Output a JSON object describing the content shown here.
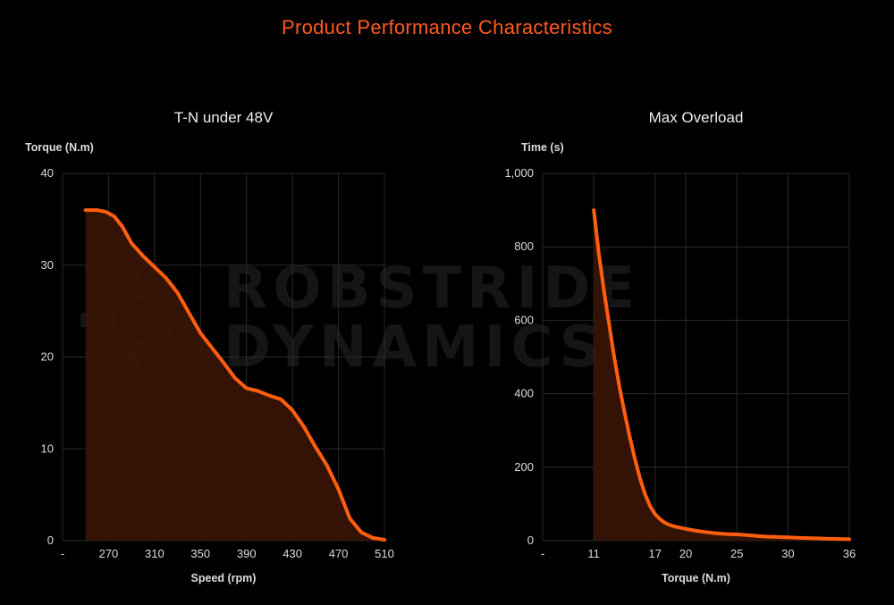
{
  "page": {
    "title": "Product Performance Characteristics",
    "title_color": "#ff5a1f",
    "watermark": {
      "line1": "ROBSTRIDE",
      "line2": "DYNAMICS"
    }
  },
  "colors": {
    "series": "#ff5e0e",
    "area_fill": "#3a1405",
    "grid": "#2a2a2a",
    "axis_text": "#dddddd"
  },
  "chart_data": [
    {
      "type": "area",
      "title": "T-N under 48V",
      "xlabel": "Speed (rpm)",
      "ylabel": "Torque (N.m)",
      "x_ticks": [
        "-",
        "270",
        "310",
        "350",
        "390",
        "430",
        "470",
        "510"
      ],
      "x_tick_values": [
        230,
        270,
        310,
        350,
        390,
        430,
        470,
        510
      ],
      "xlim": [
        230,
        510
      ],
      "ylim": [
        0,
        40
      ],
      "y_ticks": [
        "0",
        "10",
        "20",
        "30",
        "40"
      ],
      "y_tick_values": [
        0,
        10,
        20,
        30,
        40
      ],
      "grid": true,
      "series": [
        {
          "x": [
            250,
            260,
            268,
            275,
            282,
            290,
            300,
            310,
            320,
            330,
            340,
            350,
            360,
            370,
            380,
            390,
            400,
            410,
            420,
            430,
            440,
            450,
            460,
            470,
            480,
            490,
            500,
            510
          ],
          "y": [
            36,
            36,
            35.8,
            35.3,
            34.2,
            32.4,
            31,
            29.8,
            28.6,
            27,
            24.8,
            22.6,
            21,
            19.4,
            17.7,
            16.6,
            16.3,
            15.8,
            15.4,
            14.2,
            12.4,
            10.2,
            8.2,
            5.6,
            2.4,
            0.9,
            0.3,
            0.1
          ]
        }
      ]
    },
    {
      "type": "area",
      "title": "Max Overload",
      "xlabel": "Torque (N.m)",
      "ylabel": "Time (s)",
      "x_ticks": [
        "-",
        "11",
        "17",
        "20",
        "25",
        "30",
        "36"
      ],
      "x_tick_values": [
        6,
        11,
        17,
        20,
        25,
        30,
        36
      ],
      "xlim": [
        6,
        36
      ],
      "ylim": [
        0,
        1000
      ],
      "y_ticks": [
        "0",
        "200",
        "400",
        "600",
        "800",
        "1,000"
      ],
      "y_tick_values": [
        0,
        200,
        400,
        600,
        800,
        1000
      ],
      "grid": true,
      "series": [
        {
          "x": [
            11,
            11.5,
            12,
            12.5,
            13,
            13.5,
            14,
            14.5,
            15,
            15.5,
            16,
            16.5,
            17,
            17.5,
            18,
            18.5,
            19,
            20,
            21,
            22,
            23,
            24,
            25,
            26,
            27,
            28,
            30,
            32,
            34,
            36
          ],
          "y": [
            900,
            780,
            680,
            590,
            500,
            420,
            350,
            285,
            225,
            172,
            128,
            95,
            72,
            58,
            48,
            42,
            38,
            32,
            27,
            23,
            20,
            18,
            17,
            15,
            13,
            11,
            9,
            7,
            5,
            4
          ]
        }
      ]
    }
  ]
}
